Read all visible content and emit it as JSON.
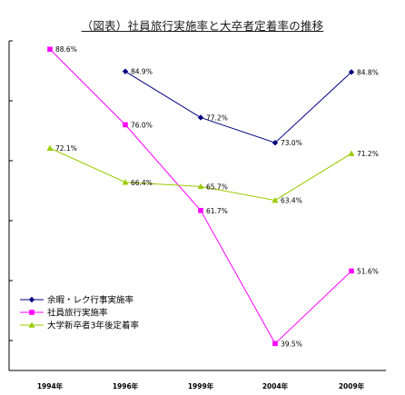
{
  "chart_data": {
    "type": "line",
    "title": "（図表）社員旅行実施率と大卒者定着率の推移",
    "categories": [
      "1994年",
      "1996年",
      "1999年",
      "2004年",
      "2009年"
    ],
    "series": [
      {
        "name": "余暇・レク行事実施率",
        "values": [
          null,
          84.9,
          77.2,
          73.0,
          84.8
        ],
        "labels": [
          null,
          "84.9%",
          "77.2%",
          "73.0%",
          "84.8%"
        ],
        "color": "#000080",
        "marker": "diamond"
      },
      {
        "name": "社員旅行実施率",
        "values": [
          88.6,
          76.0,
          61.7,
          39.5,
          51.6
        ],
        "labels": [
          "88.6%",
          "76.0%",
          "61.7%",
          "39.5%",
          "51.6%"
        ],
        "color": "#ff00ff",
        "marker": "square"
      },
      {
        "name": "大学新卒者3年後定着率",
        "values": [
          72.1,
          66.4,
          65.7,
          63.4,
          71.2
        ],
        "labels": [
          "72.1%",
          "66.4%",
          "65.7%",
          "63.4%",
          "71.2%"
        ],
        "color": "#99cc00",
        "marker": "triangle"
      }
    ],
    "ylim": [
      35,
      90
    ],
    "grid": false,
    "legend_position": "bottom-left"
  }
}
